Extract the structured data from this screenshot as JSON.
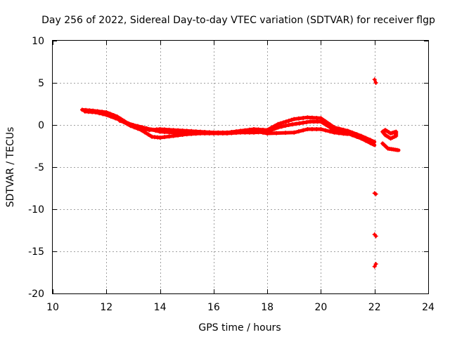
{
  "chart_data": {
    "type": "line",
    "title": "Day 256 of 2022, Sidereal Day-to-day VTEC variation (SDTVAR) for receiver flgp",
    "xlabel": "GPS time / hours",
    "ylabel": "SDTVAR / TECUs",
    "xlim": [
      10,
      24
    ],
    "ylim": [
      -20,
      10
    ],
    "xticks": [
      10,
      12,
      14,
      16,
      18,
      20,
      22,
      24
    ],
    "yticks": [
      10,
      5,
      0,
      -5,
      -10,
      -15,
      -20
    ],
    "grid": true,
    "series_color": "#ff0000",
    "series": [
      {
        "name": "main-trace-a",
        "x": [
          11.1,
          11.5,
          12.0,
          12.4,
          12.8,
          13.2,
          13.6,
          14.0,
          14.5,
          15.0,
          15.5,
          16.0,
          16.5,
          17.0,
          17.5,
          18.0,
          18.4,
          18.7,
          19.0,
          19.5,
          20.0,
          20.5,
          21.0,
          21.5,
          22.0
        ],
        "y": [
          1.8,
          1.7,
          1.5,
          1.0,
          0.2,
          -0.3,
          -0.6,
          -0.5,
          -0.6,
          -0.7,
          -0.8,
          -0.9,
          -0.9,
          -0.7,
          -0.5,
          -0.6,
          0.1,
          0.4,
          0.7,
          0.9,
          0.8,
          -0.3,
          -0.7,
          -1.3,
          -2.0
        ]
      },
      {
        "name": "main-trace-b",
        "x": [
          11.2,
          11.6,
          12.0,
          12.5,
          12.9,
          13.3,
          13.7,
          14.0,
          14.5,
          15.0,
          15.5,
          16.0,
          16.5,
          17.0,
          17.5,
          18.0,
          18.4,
          18.8,
          19.2,
          19.6,
          20.0,
          20.5,
          21.0,
          21.5,
          22.0
        ],
        "y": [
          1.6,
          1.5,
          1.2,
          0.6,
          -0.1,
          -0.6,
          -1.4,
          -1.5,
          -1.3,
          -1.1,
          -1.0,
          -1.0,
          -1.0,
          -0.9,
          -0.9,
          -0.8,
          -0.3,
          0.0,
          0.2,
          0.4,
          0.4,
          -0.6,
          -1.0,
          -1.6,
          -2.4
        ]
      },
      {
        "name": "main-trace-c",
        "x": [
          12.5,
          13.0,
          13.5,
          14.0,
          14.5,
          15.0,
          16.0,
          17.0,
          17.5,
          18.0,
          19.0,
          19.5,
          20.0,
          20.5,
          21.0
        ],
        "y": [
          0.5,
          0.0,
          -0.4,
          -0.8,
          -0.9,
          -0.9,
          -1.0,
          -0.8,
          -0.7,
          -1.0,
          -0.9,
          -0.5,
          -0.5,
          -0.9,
          -1.1
        ]
      },
      {
        "name": "trace-d",
        "x": [
          22.3,
          22.4,
          22.6,
          22.8,
          22.8,
          22.6,
          22.4,
          22.3
        ],
        "y": [
          -0.8,
          -1.2,
          -1.6,
          -1.3,
          -0.8,
          -1.0,
          -0.6,
          -0.8
        ]
      },
      {
        "name": "trace-e",
        "x": [
          22.3,
          22.5,
          22.7,
          22.9
        ],
        "y": [
          -2.2,
          -2.8,
          -2.9,
          -3.0
        ]
      }
    ],
    "outliers": [
      {
        "x": [
          22.0,
          22.05
        ],
        "y": [
          5.4,
          5.0
        ]
      },
      {
        "x": [
          22.0,
          22.05
        ],
        "y": [
          -8.1,
          -8.2
        ]
      },
      {
        "x": [
          22.0,
          22.05
        ],
        "y": [
          -13.0,
          -13.2
        ]
      },
      {
        "x": [
          22.0,
          22.05
        ],
        "y": [
          -16.8,
          -16.5
        ]
      }
    ]
  }
}
